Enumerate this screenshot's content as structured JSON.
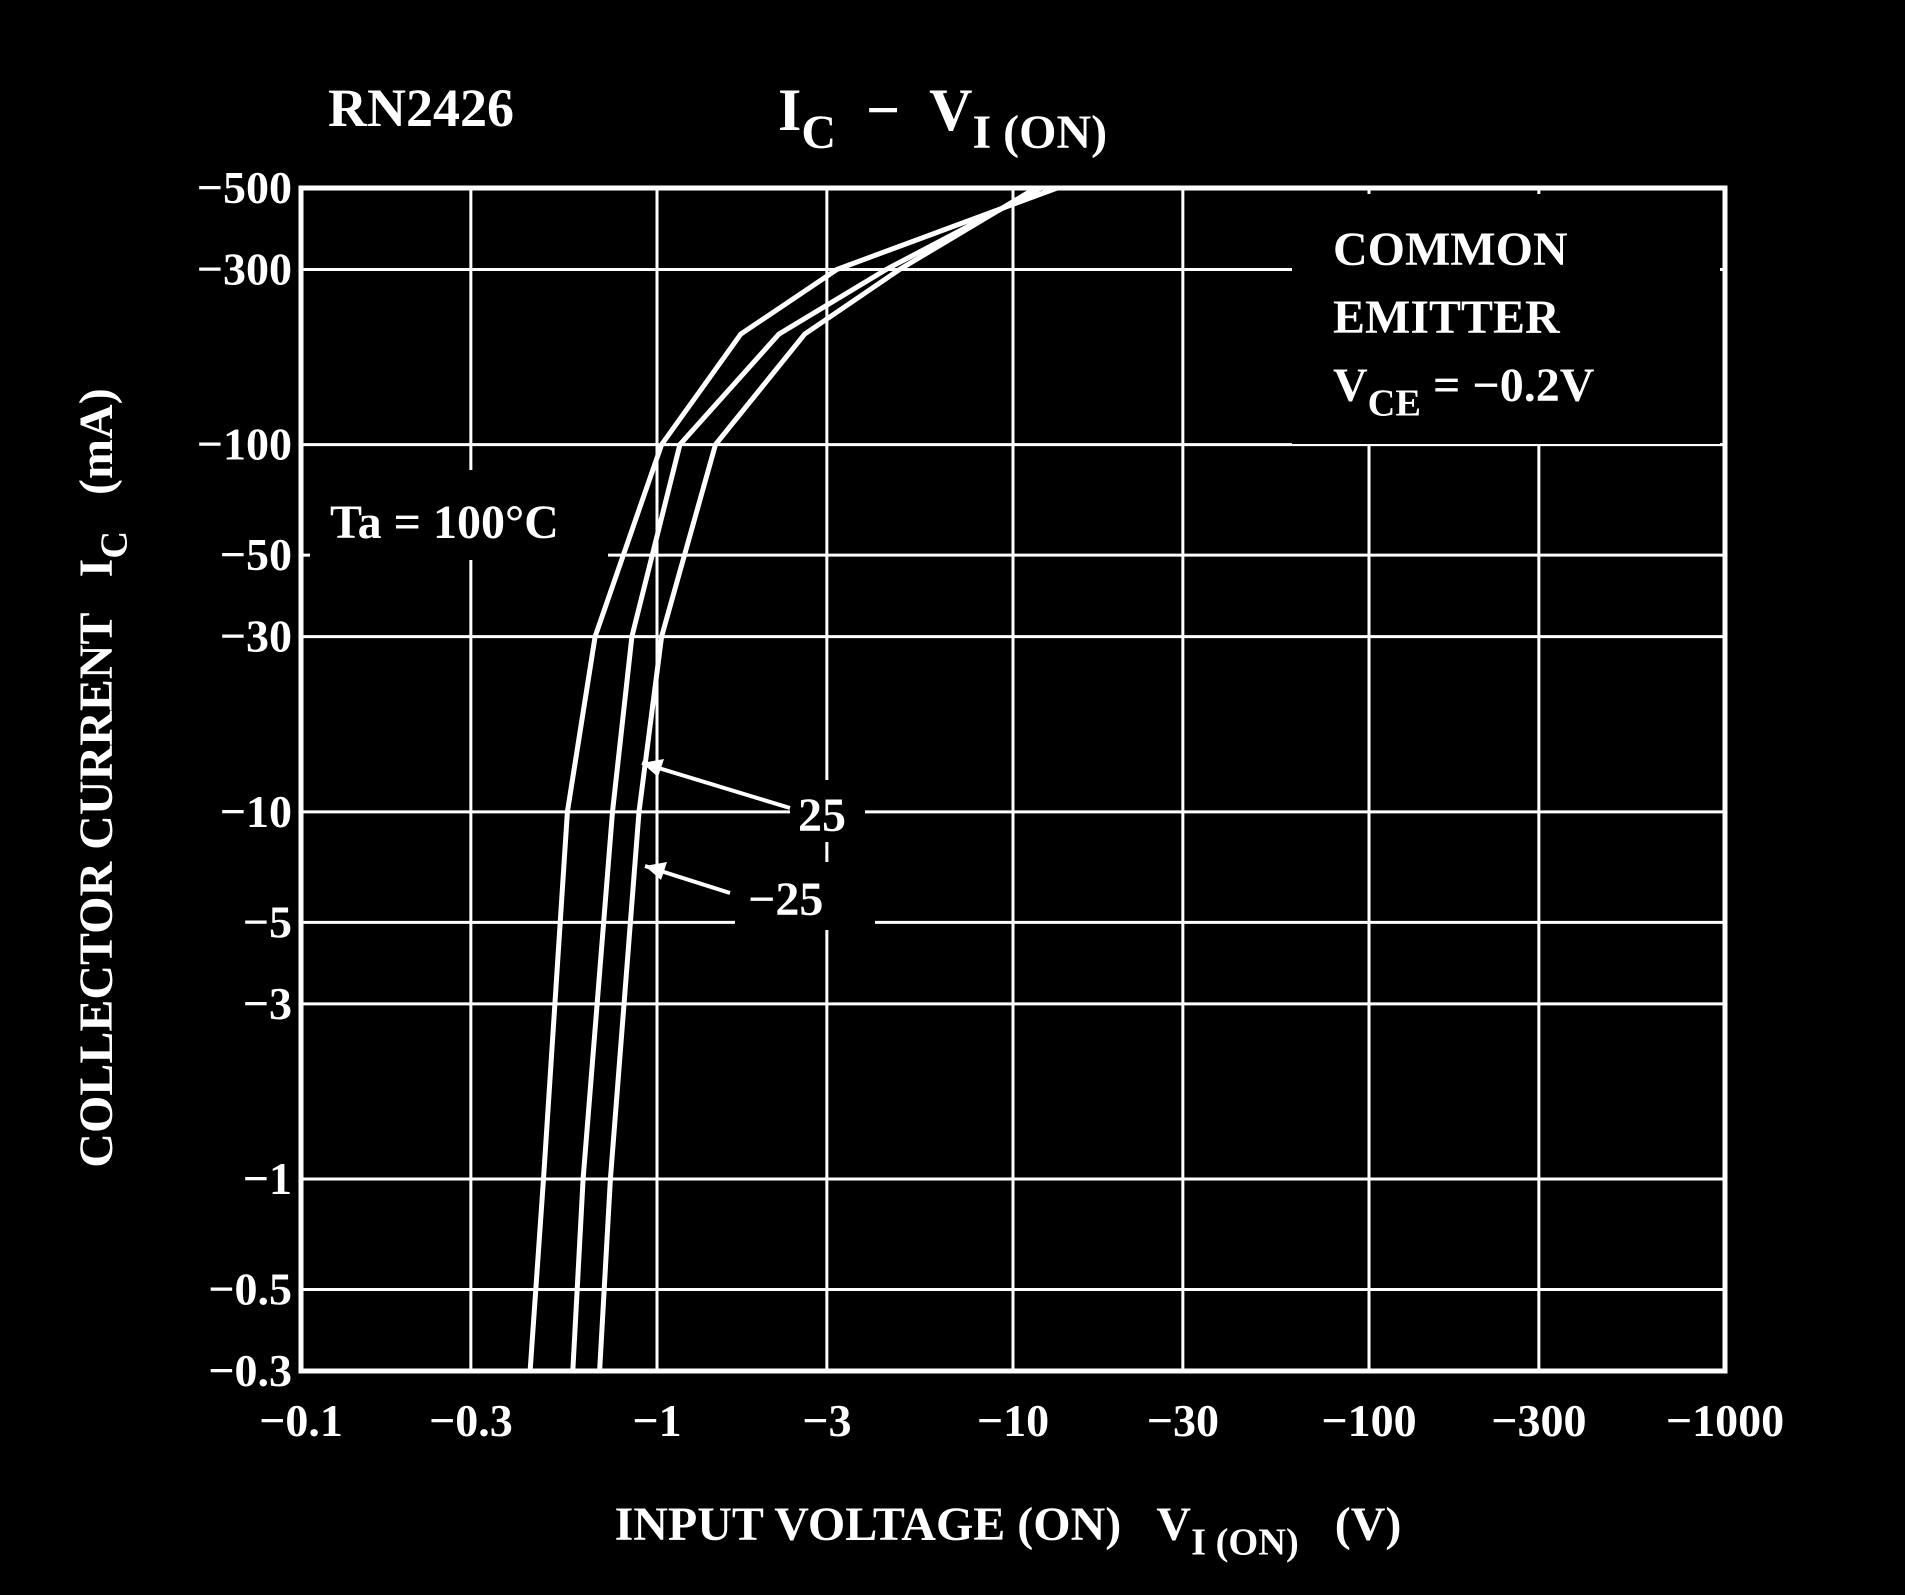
{
  "chart_data": {
    "type": "line",
    "device": "RN2426",
    "title": [
      {
        "text": "I"
      },
      {
        "text": "C",
        "sub": true
      },
      {
        "text": "  −  V"
      },
      {
        "text": "I (ON)",
        "sub": true
      }
    ],
    "x_label": [
      {
        "text": "INPUT VOLTAGE (ON)   V"
      },
      {
        "text": "I (ON)",
        "sub": true
      },
      {
        "text": "   (V)"
      }
    ],
    "y_label": [
      {
        "text": "COLLECTOR CURRENT   I"
      },
      {
        "text": "C",
        "sub": true
      },
      {
        "text": "   (mA)"
      }
    ],
    "annotation": [
      [
        {
          "text": "COMMON"
        }
      ],
      [
        {
          "text": "EMITTER"
        }
      ],
      [
        {
          "text": "V"
        },
        {
          "text": "CE",
          "sub": true
        },
        {
          "text": " = −0.2V"
        }
      ]
    ],
    "log_x": true,
    "log_y": true,
    "grid": true,
    "xlim": [
      -0.1,
      -1000
    ],
    "ylim": [
      -0.3,
      -500
    ],
    "xticks": [
      {
        "value": -0.1,
        "label": "−0.1"
      },
      {
        "value": -0.3,
        "label": "−0.3"
      },
      {
        "value": -1,
        "label": "−1"
      },
      {
        "value": -3,
        "label": "−3"
      },
      {
        "value": -10,
        "label": "−10"
      },
      {
        "value": -30,
        "label": "−30"
      },
      {
        "value": -100,
        "label": "−100"
      },
      {
        "value": -300,
        "label": "−300"
      },
      {
        "value": -1000,
        "label": "−1000"
      }
    ],
    "yticks": [
      {
        "value": -0.3,
        "label": "−0.3"
      },
      {
        "value": -0.5,
        "label": "−0.5"
      },
      {
        "value": -1,
        "label": "−1"
      },
      {
        "value": -3,
        "label": "−3"
      },
      {
        "value": -5,
        "label": "−5"
      },
      {
        "value": -10,
        "label": "−10"
      },
      {
        "value": -30,
        "label": "−30"
      },
      {
        "value": -50,
        "label": "−50"
      },
      {
        "value": -100,
        "label": "−100"
      },
      {
        "value": -300,
        "label": "−300"
      },
      {
        "value": -500,
        "label": "−500"
      }
    ],
    "series": [
      {
        "name": "Ta = 100°C",
        "color": "#ffffff",
        "x": [
          -0.44,
          -0.48,
          -0.56,
          -0.67,
          -1.03,
          -1.72,
          -3.2,
          -13.3
        ],
        "values": [
          -0.3,
          -1,
          -10,
          -30,
          -100,
          -200,
          -300,
          -500
        ]
      },
      {
        "name": "25",
        "color": "#ffffff",
        "x": [
          -0.58,
          -0.62,
          -0.75,
          -0.85,
          -1.16,
          -2.2,
          -4.4,
          -12
        ],
        "values": [
          -0.3,
          -1,
          -10,
          -30,
          -100,
          -200,
          -300,
          -500
        ]
      },
      {
        "name": "−25",
        "color": "#ffffff",
        "x": [
          -0.69,
          -0.74,
          -0.89,
          -1.03,
          -1.46,
          -2.6,
          -4.8,
          -11.6
        ],
        "values": [
          -0.3,
          -1,
          -10,
          -30,
          -100,
          -200,
          -300,
          -500
        ]
      }
    ]
  }
}
